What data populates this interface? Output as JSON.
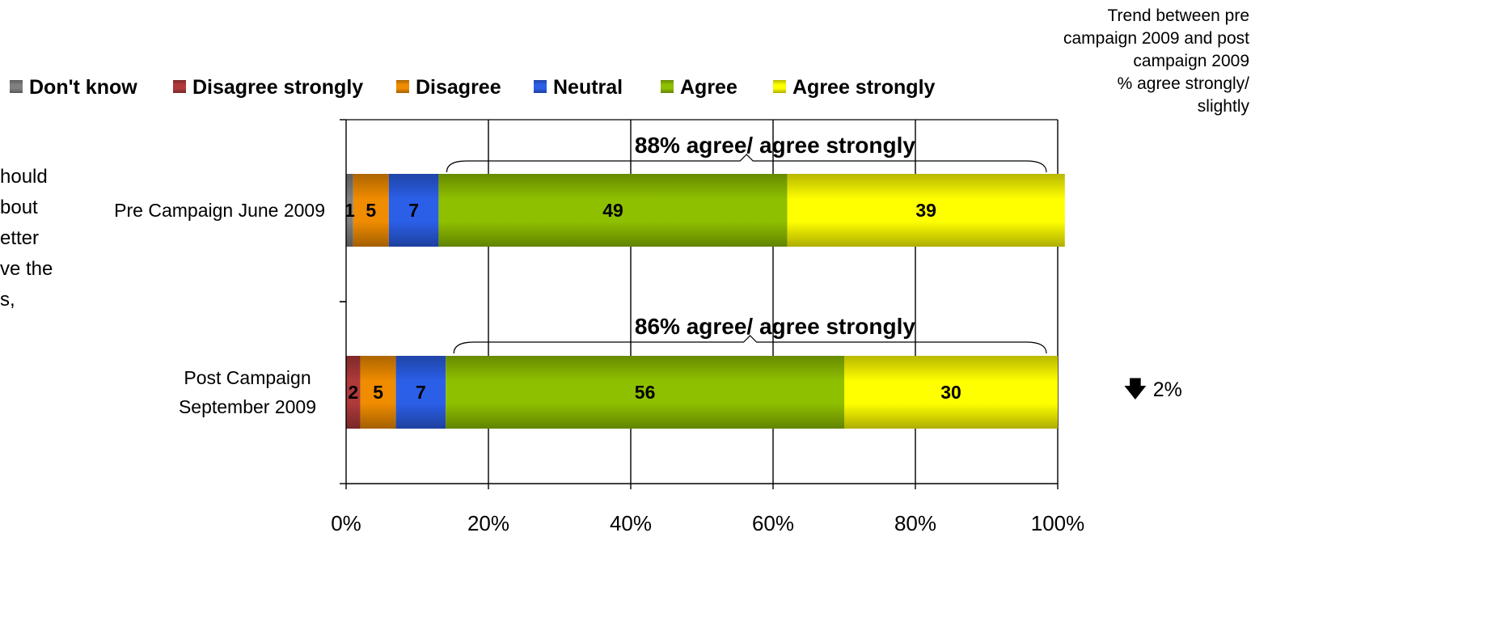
{
  "chart_data": {
    "type": "bar",
    "orientation": "horizontal",
    "stacked": true,
    "categories": [
      "Pre Campaign June 2009",
      "Post Campaign September 2009"
    ],
    "category_label_lines": [
      [
        "Pre Campaign June 2009"
      ],
      [
        "Post Campaign",
        "September 2009"
      ]
    ],
    "series": [
      {
        "name": "Don't know",
        "values": [
          1,
          0
        ],
        "color": "#808080",
        "value_labels": [
          "1",
          ""
        ]
      },
      {
        "name": "Disagree strongly",
        "values": [
          0,
          2
        ],
        "color": "#b03a3a",
        "value_labels": [
          "",
          "2"
        ]
      },
      {
        "name": "Disagree",
        "values": [
          5,
          5
        ],
        "color": "#f08c00",
        "value_labels": [
          "5",
          "5"
        ]
      },
      {
        "name": "Neutral",
        "values": [
          7,
          7
        ],
        "color": "#2b5fe8",
        "value_labels": [
          "7",
          "7"
        ]
      },
      {
        "name": "Agree",
        "values": [
          49,
          56
        ],
        "color": "#8fc000",
        "value_labels": [
          "49",
          "56"
        ]
      },
      {
        "name": "Agree strongly",
        "values": [
          39,
          30
        ],
        "color": "#ffff00",
        "value_labels": [
          "39",
          "30"
        ]
      }
    ],
    "bracket_labels": [
      "88% agree/ agree strongly",
      "86% agree/ agree strongly"
    ],
    "xlim": [
      0,
      100
    ],
    "x_ticks": [
      0,
      20,
      40,
      60,
      80,
      100
    ],
    "x_tick_labels": [
      "0%",
      "20%",
      "40%",
      "60%",
      "80%",
      "100%"
    ],
    "grid": "vertical",
    "legend_position": "top"
  },
  "trend_note": {
    "lines": [
      "Trend between pre",
      "campaign 2009 and post",
      "campaign 2009",
      "% agree strongly/",
      "slightly"
    ]
  },
  "change": {
    "arrow": "down-arrow",
    "arrow_glyph": "🡇",
    "value": "2%"
  },
  "side_text": {
    "lines": [
      "hould",
      "bout",
      "etter",
      "ve the",
      "s,"
    ]
  }
}
